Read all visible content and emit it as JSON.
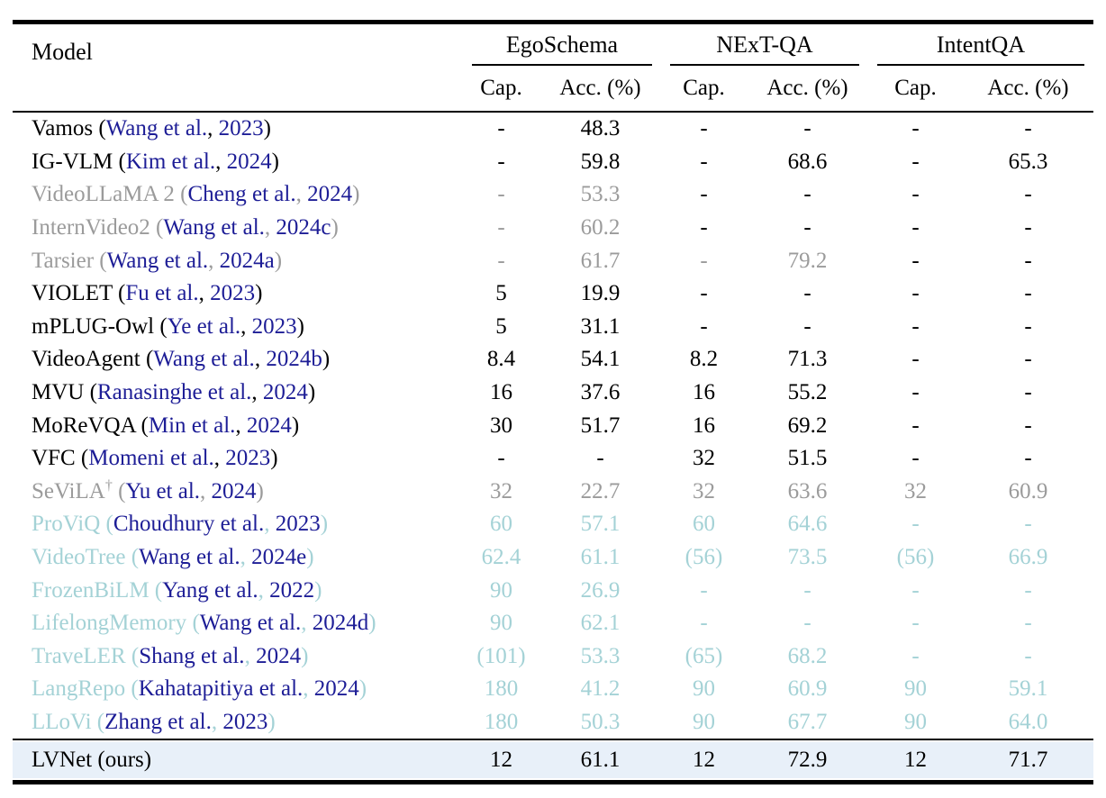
{
  "colors": {
    "text": "#000000",
    "citation_navy": "#1d1d96",
    "muted_gray": "#9b9b9b",
    "muted_teal": "#a4d2d6",
    "highlight_bg": "#e8f0f9",
    "rule_black": "#000000"
  },
  "header": {
    "model_label": "Model",
    "groups": [
      {
        "label": "EgoSchema"
      },
      {
        "label": "NExT-QA"
      },
      {
        "label": "IntentQA"
      }
    ],
    "sub_labels": [
      "Cap.",
      "Acc. (%)"
    ]
  },
  "rows": [
    {
      "name": "Vamos",
      "sup": "",
      "authors": "Wang et al.",
      "year": "2023",
      "tone": "black",
      "cells": [
        {
          "v": "-",
          "t": "black"
        },
        {
          "v": "48.3",
          "t": "black"
        },
        {
          "v": "-",
          "t": "black"
        },
        {
          "v": "-",
          "t": "black"
        },
        {
          "v": "-",
          "t": "black"
        },
        {
          "v": "-",
          "t": "black"
        }
      ]
    },
    {
      "name": "IG-VLM",
      "sup": "",
      "authors": "Kim et al.",
      "year": "2024",
      "tone": "black",
      "cells": [
        {
          "v": "-",
          "t": "black"
        },
        {
          "v": "59.8",
          "t": "black"
        },
        {
          "v": "-",
          "t": "black"
        },
        {
          "v": "68.6",
          "t": "black"
        },
        {
          "v": "-",
          "t": "black"
        },
        {
          "v": "65.3",
          "t": "black"
        }
      ]
    },
    {
      "name": "VideoLLaMA 2",
      "sup": "",
      "authors": "Cheng et al.",
      "year": "2024",
      "tone": "gray",
      "cells": [
        {
          "v": "-",
          "t": "gray"
        },
        {
          "v": "53.3",
          "t": "gray"
        },
        {
          "v": "-",
          "t": "black"
        },
        {
          "v": "-",
          "t": "black"
        },
        {
          "v": "-",
          "t": "black"
        },
        {
          "v": "-",
          "t": "black"
        }
      ]
    },
    {
      "name": "InternVideo2",
      "sup": "",
      "authors": "Wang et al.",
      "year": "2024c",
      "tone": "gray",
      "cells": [
        {
          "v": "-",
          "t": "gray"
        },
        {
          "v": "60.2",
          "t": "gray"
        },
        {
          "v": "-",
          "t": "black"
        },
        {
          "v": "-",
          "t": "black"
        },
        {
          "v": "-",
          "t": "black"
        },
        {
          "v": "-",
          "t": "black"
        }
      ]
    },
    {
      "name": "Tarsier",
      "sup": "",
      "authors": "Wang et al.",
      "year": "2024a",
      "tone": "gray",
      "cells": [
        {
          "v": "-",
          "t": "gray"
        },
        {
          "v": "61.7",
          "t": "gray"
        },
        {
          "v": "-",
          "t": "gray"
        },
        {
          "v": "79.2",
          "t": "gray"
        },
        {
          "v": "-",
          "t": "black"
        },
        {
          "v": "-",
          "t": "black"
        }
      ]
    },
    {
      "name": "VIOLET",
      "sup": "",
      "authors": "Fu et al.",
      "year": "2023",
      "tone": "black",
      "cells": [
        {
          "v": "5",
          "t": "black"
        },
        {
          "v": "19.9",
          "t": "black"
        },
        {
          "v": "-",
          "t": "black"
        },
        {
          "v": "-",
          "t": "black"
        },
        {
          "v": "-",
          "t": "black"
        },
        {
          "v": "-",
          "t": "black"
        }
      ]
    },
    {
      "name": "mPLUG-Owl",
      "sup": "",
      "authors": "Ye et al.",
      "year": "2023",
      "tone": "black",
      "cells": [
        {
          "v": "5",
          "t": "black"
        },
        {
          "v": "31.1",
          "t": "black"
        },
        {
          "v": "-",
          "t": "black"
        },
        {
          "v": "-",
          "t": "black"
        },
        {
          "v": "-",
          "t": "black"
        },
        {
          "v": "-",
          "t": "black"
        }
      ]
    },
    {
      "name": "VideoAgent",
      "sup": "",
      "authors": "Wang et al.",
      "year": "2024b",
      "tone": "black",
      "cells": [
        {
          "v": "8.4",
          "t": "black"
        },
        {
          "v": "54.1",
          "t": "black"
        },
        {
          "v": "8.2",
          "t": "black"
        },
        {
          "v": "71.3",
          "t": "black"
        },
        {
          "v": "-",
          "t": "black"
        },
        {
          "v": "-",
          "t": "black"
        }
      ]
    },
    {
      "name": "MVU",
      "sup": "",
      "authors": "Ranasinghe et al.",
      "year": "2024",
      "tone": "black",
      "cells": [
        {
          "v": "16",
          "t": "black"
        },
        {
          "v": "37.6",
          "t": "black"
        },
        {
          "v": "16",
          "t": "black"
        },
        {
          "v": "55.2",
          "t": "black"
        },
        {
          "v": "-",
          "t": "black"
        },
        {
          "v": "-",
          "t": "black"
        }
      ]
    },
    {
      "name": "MoReVQA",
      "sup": "",
      "authors": "Min et al.",
      "year": "2024",
      "tone": "black",
      "cells": [
        {
          "v": "30",
          "t": "black"
        },
        {
          "v": "51.7",
          "t": "black"
        },
        {
          "v": "16",
          "t": "black"
        },
        {
          "v": "69.2",
          "t": "black"
        },
        {
          "v": "-",
          "t": "black"
        },
        {
          "v": "-",
          "t": "black"
        }
      ]
    },
    {
      "name": "VFC",
      "sup": "",
      "authors": "Momeni et al.",
      "year": "2023",
      "tone": "black",
      "cells": [
        {
          "v": "-",
          "t": "black"
        },
        {
          "v": "-",
          "t": "black"
        },
        {
          "v": "32",
          "t": "black"
        },
        {
          "v": "51.5",
          "t": "black"
        },
        {
          "v": "-",
          "t": "black"
        },
        {
          "v": "-",
          "t": "black"
        }
      ]
    },
    {
      "name": "SeViLA",
      "sup": "†",
      "authors": "Yu et al.",
      "year": "2024",
      "tone": "gray",
      "cells": [
        {
          "v": "32",
          "t": "gray"
        },
        {
          "v": "22.7",
          "t": "gray"
        },
        {
          "v": "32",
          "t": "gray"
        },
        {
          "v": "63.6",
          "t": "gray"
        },
        {
          "v": "32",
          "t": "gray"
        },
        {
          "v": "60.9",
          "t": "gray"
        }
      ]
    },
    {
      "name": "ProViQ",
      "sup": "",
      "authors": "Choudhury et al.",
      "year": "2023",
      "tone": "teal",
      "cells": [
        {
          "v": "60",
          "t": "teal"
        },
        {
          "v": "57.1",
          "t": "teal"
        },
        {
          "v": "60",
          "t": "teal"
        },
        {
          "v": "64.6",
          "t": "teal"
        },
        {
          "v": "-",
          "t": "teal"
        },
        {
          "v": "-",
          "t": "teal"
        }
      ]
    },
    {
      "name": "VideoTree",
      "sup": "",
      "authors": "Wang et al.",
      "year": "2024e",
      "tone": "teal",
      "cells": [
        {
          "v": "62.4",
          "t": "teal"
        },
        {
          "v": "61.1",
          "t": "teal"
        },
        {
          "v": "(56)",
          "t": "teal"
        },
        {
          "v": "73.5",
          "t": "teal"
        },
        {
          "v": "(56)",
          "t": "teal"
        },
        {
          "v": "66.9",
          "t": "teal"
        }
      ]
    },
    {
      "name": "FrozenBiLM",
      "sup": "",
      "authors": "Yang et al.",
      "year": "2022",
      "tone": "teal",
      "cells": [
        {
          "v": "90",
          "t": "teal"
        },
        {
          "v": "26.9",
          "t": "teal"
        },
        {
          "v": "-",
          "t": "teal"
        },
        {
          "v": "-",
          "t": "teal"
        },
        {
          "v": "-",
          "t": "teal"
        },
        {
          "v": "-",
          "t": "teal"
        }
      ]
    },
    {
      "name": "LifelongMemory",
      "sup": "",
      "authors": "Wang et al.",
      "year": "2024d",
      "tone": "teal",
      "cells": [
        {
          "v": "90",
          "t": "teal"
        },
        {
          "v": "62.1",
          "t": "teal"
        },
        {
          "v": "-",
          "t": "teal"
        },
        {
          "v": "-",
          "t": "teal"
        },
        {
          "v": "-",
          "t": "teal"
        },
        {
          "v": "-",
          "t": "teal"
        }
      ]
    },
    {
      "name": "TraveLER",
      "sup": "",
      "authors": "Shang et al.",
      "year": "2024",
      "tone": "teal",
      "cells": [
        {
          "v": "(101)",
          "t": "teal"
        },
        {
          "v": "53.3",
          "t": "teal"
        },
        {
          "v": "(65)",
          "t": "teal"
        },
        {
          "v": "68.2",
          "t": "teal"
        },
        {
          "v": "-",
          "t": "teal"
        },
        {
          "v": "-",
          "t": "teal"
        }
      ]
    },
    {
      "name": "LangRepo",
      "sup": "",
      "authors": "Kahatapitiya et al.",
      "year": "2024",
      "tone": "teal",
      "cells": [
        {
          "v": "180",
          "t": "teal"
        },
        {
          "v": "41.2",
          "t": "teal"
        },
        {
          "v": "90",
          "t": "teal"
        },
        {
          "v": "60.9",
          "t": "teal"
        },
        {
          "v": "90",
          "t": "teal"
        },
        {
          "v": "59.1",
          "t": "teal"
        }
      ]
    },
    {
      "name": "LLoVi",
      "sup": "",
      "authors": "Zhang et al.",
      "year": "2023",
      "tone": "teal",
      "cells": [
        {
          "v": "180",
          "t": "teal"
        },
        {
          "v": "50.3",
          "t": "teal"
        },
        {
          "v": "90",
          "t": "teal"
        },
        {
          "v": "67.7",
          "t": "teal"
        },
        {
          "v": "90",
          "t": "teal"
        },
        {
          "v": "64.0",
          "t": "teal"
        }
      ]
    }
  ],
  "final_row": {
    "name": "LVNet",
    "suffix": "(ours)",
    "tone": "black",
    "cells": [
      {
        "v": "12",
        "t": "black"
      },
      {
        "v": "61.1",
        "t": "black"
      },
      {
        "v": "12",
        "t": "black"
      },
      {
        "v": "72.9",
        "t": "black"
      },
      {
        "v": "12",
        "t": "black"
      },
      {
        "v": "71.7",
        "t": "black"
      }
    ]
  }
}
